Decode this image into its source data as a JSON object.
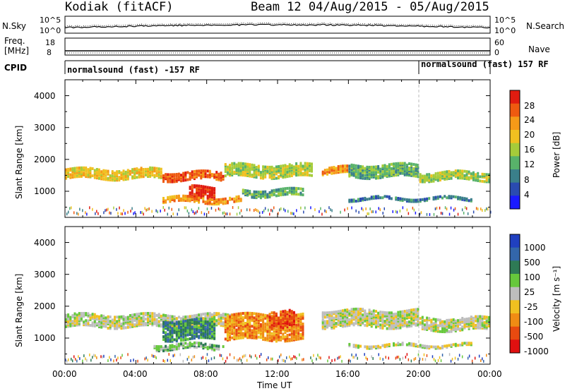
{
  "header": {
    "station": "Kodiak (fitACF)",
    "beam_date": "Beam 12 04/Aug/2015 - 05/Aug/2015"
  },
  "noise_panel": {
    "left_label": "N.Sky",
    "right_label": "N.Search",
    "left_ticks": [
      "10^5",
      "10^0"
    ],
    "right_ticks": [
      "10^5",
      "10^0"
    ]
  },
  "freq_panel": {
    "left_label_1": "Freq.",
    "left_label_2": "[MHz]",
    "right_label": "Nave",
    "left_ticks": [
      "18",
      "8"
    ],
    "right_ticks": [
      "60",
      "0"
    ]
  },
  "cpid_panel": {
    "label": "CPID",
    "segment_1": "normalsound (fast) -157 RF",
    "segment_2": "normalsound (fast) 157 RF"
  },
  "x_axis": {
    "label": "Time UT",
    "ticks": [
      "00:00",
      "04:00",
      "08:00",
      "12:00",
      "16:00",
      "20:00",
      "00:00"
    ]
  },
  "power_panel": {
    "ylabel": "Slant Range [km]",
    "yticks": [
      "1000",
      "2000",
      "3000",
      "4000"
    ],
    "colorbar_label": "Power [dB]",
    "colorbar_ticks": [
      "4",
      "8",
      "12",
      "16",
      "20",
      "24",
      "28"
    ]
  },
  "velocity_panel": {
    "ylabel": "Slant Range [km]",
    "yticks": [
      "1000",
      "2000",
      "3000",
      "4000"
    ],
    "colorbar_label": "Velocity [m s⁻¹]",
    "colorbar_ticks": [
      "1000",
      "500",
      "100",
      "25",
      "-25",
      "-100",
      "-500",
      "-1000"
    ]
  },
  "colors": {
    "power_scale": [
      "#1a1aff",
      "#2a4bb0",
      "#3a7f8a",
      "#58b26a",
      "#a6cc3a",
      "#f0c020",
      "#f59a18",
      "#ee5a10",
      "#e01c10"
    ],
    "velocity_scale": [
      "#2040c0",
      "#3366aa",
      "#2e7a55",
      "#66c83c",
      "#bdbdbd",
      "#f0c020",
      "#f08c14",
      "#e84a10",
      "#e01010"
    ]
  },
  "chart_data": {
    "type": "heatmap",
    "x_range_hours": [
      0,
      24
    ],
    "y_range_km": [
      180,
      4500
    ],
    "power_bands": [
      {
        "t0": 0.0,
        "t1": 5.5,
        "r0": 1450,
        "r1": 1750,
        "level": 5
      },
      {
        "t0": 5.5,
        "t1": 9.0,
        "r0": 1400,
        "r1": 1650,
        "level": 7
      },
      {
        "t0": 7.0,
        "t1": 8.5,
        "r0": 800,
        "r1": 1200,
        "level": 8
      },
      {
        "t0": 5.5,
        "t1": 10.0,
        "r0": 700,
        "r1": 850,
        "level": 6
      },
      {
        "t0": 9.0,
        "t1": 14.0,
        "r0": 1500,
        "r1": 1900,
        "level": 4
      },
      {
        "t0": 10.0,
        "t1": 13.5,
        "r0": 900,
        "r1": 1100,
        "level": 3
      },
      {
        "t0": 14.5,
        "t1": 16.0,
        "r0": 1600,
        "r1": 1800,
        "level": 6
      },
      {
        "t0": 16.0,
        "t1": 20.0,
        "r0": 1500,
        "r1": 1900,
        "level": 3
      },
      {
        "t0": 20.0,
        "t1": 24.0,
        "r0": 1400,
        "r1": 1650,
        "level": 4
      },
      {
        "t0": 16.0,
        "t1": 23.0,
        "r0": 780,
        "r1": 860,
        "level": 2
      }
    ],
    "velocity_bands": [
      {
        "t0": 0.0,
        "t1": 9.5,
        "r0": 1400,
        "r1": 1800,
        "level": 4
      },
      {
        "t0": 5.5,
        "t1": 8.5,
        "r0": 1000,
        "r1": 1600,
        "level": 2
      },
      {
        "t0": 5.0,
        "t1": 9.0,
        "r0": 700,
        "r1": 850,
        "level": 3
      },
      {
        "t0": 9.0,
        "t1": 13.5,
        "r0": 1000,
        "r1": 1800,
        "level": 6
      },
      {
        "t0": 11.5,
        "t1": 13.0,
        "r0": 1400,
        "r1": 1900,
        "level": 7
      },
      {
        "t0": 14.5,
        "t1": 20.0,
        "r0": 1400,
        "r1": 1900,
        "level": 4
      },
      {
        "t0": 20.0,
        "t1": 24.0,
        "r0": 1300,
        "r1": 1700,
        "level": 4
      },
      {
        "t0": 16.0,
        "t1": 23.0,
        "r0": 780,
        "r1": 860,
        "level": 4
      }
    ]
  }
}
